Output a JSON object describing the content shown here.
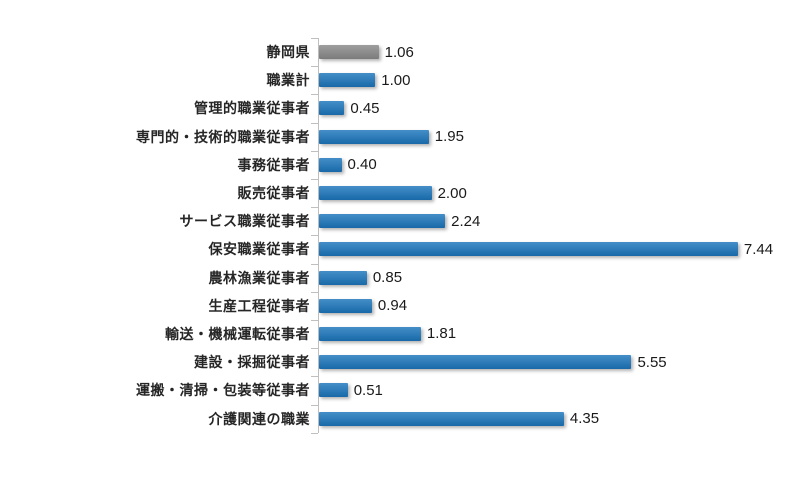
{
  "chart_data": {
    "type": "bar",
    "orientation": "horizontal",
    "title": "",
    "xlabel": "",
    "ylabel": "",
    "categories": [
      "静岡県",
      "職業計",
      "管理的職業従事者",
      "専門的・技術的職業従事者",
      "事務従事者",
      "販売従事者",
      "サービス職業従事者",
      "保安職業従事者",
      "農林漁業従事者",
      "生産工程従事者",
      "輸送・機械運転従事者",
      "建設・採掘従事者",
      "運搬・清掃・包装等従事者",
      "介護関連の職業"
    ],
    "values": [
      1.06,
      1.0,
      0.45,
      1.95,
      0.4,
      2.0,
      2.24,
      7.44,
      0.85,
      0.94,
      1.81,
      5.55,
      0.51,
      4.35
    ],
    "value_labels": [
      "1.06",
      "1.00",
      "0.45",
      "1.95",
      "0.40",
      "2.00",
      "2.24",
      "7.44",
      "0.85",
      "0.94",
      "1.81",
      "5.55",
      "0.51",
      "4.35"
    ],
    "xlim": [
      0,
      8
    ],
    "grid": false,
    "legend": false,
    "colors": {
      "bar_default": "#1B75BC",
      "bar_highlight_first": "#898989",
      "axis_line": "#BFBFBF",
      "category_text": "#262626",
      "value_text": "#1a1a1a",
      "background": "#ffffff"
    }
  }
}
